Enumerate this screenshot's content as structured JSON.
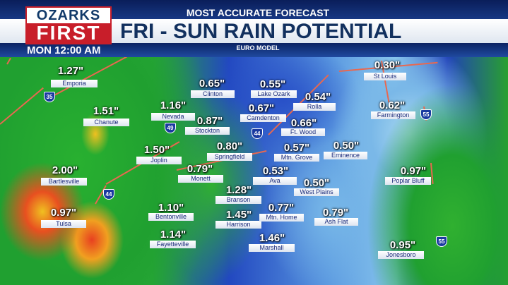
{
  "header": {
    "logo_top": "OZARKS",
    "logo_bottom": "FIRST",
    "kicker": "MOST ACCURATE FORECAST",
    "title": "FRI - SUN RAIN POTENTIAL",
    "model": "EURO MODEL",
    "time": "MON 12:00 AM"
  },
  "colors": {
    "brand_red": "#c81e2a",
    "title_navy": "#12305e",
    "low_rain": "#2248c0",
    "moderate_rain": "#20a030",
    "heavy_rain": "#f0c020",
    "very_heavy_rain": "#e84020"
  },
  "locations": [
    {
      "value": "1.27\"",
      "city": "Emporia"
    },
    {
      "value": "1.51\"",
      "city": "Chanute"
    },
    {
      "value": "0.65\"",
      "city": "Clinton"
    },
    {
      "value": "1.16\"",
      "city": "Nevada"
    },
    {
      "value": "0.87\"",
      "city": "Stockton"
    },
    {
      "value": "0.55\"",
      "city": "Lake Ozark"
    },
    {
      "value": "0.67\"",
      "city": "Camdenton"
    },
    {
      "value": "0.54\"",
      "city": "Rolla"
    },
    {
      "value": "0.66\"",
      "city": "Ft. Wood"
    },
    {
      "value": "0.30\"",
      "city": "St Louis"
    },
    {
      "value": "0.62\"",
      "city": "Farmington"
    },
    {
      "value": "1.50\"",
      "city": "Joplin"
    },
    {
      "value": "0.80\"",
      "city": "Springfield"
    },
    {
      "value": "0.57\"",
      "city": "Mtn. Grove"
    },
    {
      "value": "0.50\"",
      "city": "Eminence"
    },
    {
      "value": "2.00\"",
      "city": "Bartlesville"
    },
    {
      "value": "0.79\"",
      "city": "Monett"
    },
    {
      "value": "0.53\"",
      "city": "Ava"
    },
    {
      "value": "0.50\"",
      "city": "West Plains"
    },
    {
      "value": "0.97\"",
      "city": "Poplar Bluff"
    },
    {
      "value": "1.28\"",
      "city": "Branson"
    },
    {
      "value": "0.97\"",
      "city": "Tulsa"
    },
    {
      "value": "1.10\"",
      "city": "Bentonville"
    },
    {
      "value": "1.45\"",
      "city": "Harrison"
    },
    {
      "value": "0.77\"",
      "city": "Mtn. Home"
    },
    {
      "value": "0.79\"",
      "city": "Ash Flat"
    },
    {
      "value": "1.14\"",
      "city": "Fayetteville"
    },
    {
      "value": "1.46\"",
      "city": "Marshall"
    },
    {
      "value": "0.95\"",
      "city": "Jonesboro"
    }
  ],
  "interstates": [
    "35",
    "49",
    "44",
    "44",
    "55",
    "55"
  ]
}
